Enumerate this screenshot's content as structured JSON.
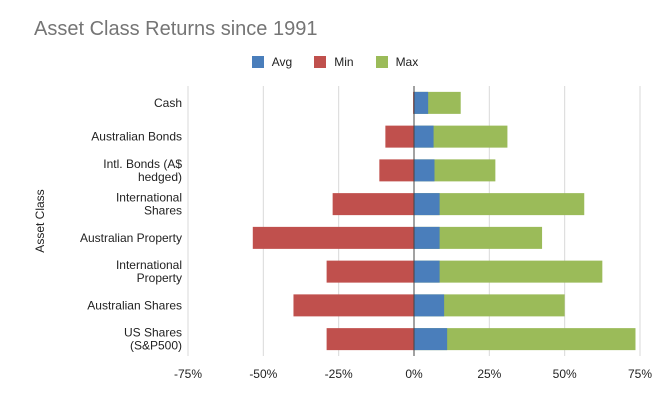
{
  "chart_data": {
    "type": "bar",
    "orientation": "horizontal",
    "title": "Asset Class Returns since 1991",
    "ylabel": "Asset Class",
    "xlabel": "",
    "categories": [
      "Cash",
      "Australian Bonds",
      "Intl. Bonds (A$ hedged)",
      "International Shares",
      "Australian Property",
      "International Property",
      "Australian Shares",
      "US Shares (S&P500)"
    ],
    "category_lines": [
      [
        "Cash"
      ],
      [
        "Australian Bonds"
      ],
      [
        "Intl. Bonds (A$",
        "hedged)"
      ],
      [
        "International",
        "Shares"
      ],
      [
        "Australian Property"
      ],
      [
        "International",
        "Property"
      ],
      [
        "Australian Shares"
      ],
      [
        "US Shares",
        "(S&P500)"
      ]
    ],
    "series": [
      {
        "name": "Avg",
        "color": "#4a7ebb",
        "values": [
          4.7,
          6.5,
          6.8,
          8.5,
          8.5,
          8.5,
          10,
          11
        ]
      },
      {
        "name": "Min",
        "color": "#c0504d",
        "values": [
          -0.3,
          -9.5,
          -11.5,
          -27,
          -53.5,
          -29,
          -40,
          -29
        ]
      },
      {
        "name": "Max",
        "color": "#9bbb59",
        "values": [
          15.5,
          31,
          27,
          56.5,
          42.5,
          62.5,
          50,
          73.5
        ]
      }
    ],
    "xlim": [
      -75,
      75
    ],
    "ticks": [
      "-75%",
      "-50%",
      "-25%",
      "0%",
      "25%",
      "50%",
      "75%"
    ],
    "tick_values": [
      -75,
      -50,
      -25,
      0,
      25,
      50,
      75
    ],
    "grid": true,
    "legend_position": "top-center"
  }
}
